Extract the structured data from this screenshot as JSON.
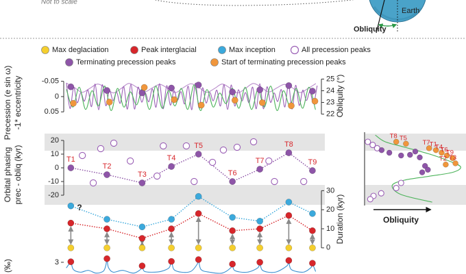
{
  "header": {
    "note": "Not to scale",
    "earth": "Earth",
    "obliquity": "Obliquity"
  },
  "legend": [
    {
      "name": "Max deglaciation",
      "color": "#f5cf2e",
      "marker": "filled"
    },
    {
      "name": "Peak interglacial",
      "color": "#d7262b",
      "marker": "filled"
    },
    {
      "name": "Max inception",
      "color": "#3ba9dc",
      "marker": "filled"
    },
    {
      "name": "All precession peaks",
      "color": "#9a5fb5",
      "marker": "open"
    },
    {
      "name": "Terminating precession peaks",
      "color": "#8e55a8",
      "marker": "filled"
    },
    {
      "name": "Start of terminating precession peaks",
      "color": "#f0963c",
      "marker": "filled"
    }
  ],
  "chart_data": [
    {
      "type": "line",
      "ylabel": "Precession (e sin ω)",
      "ylabel2": "-1* eccentricity",
      "y2label": "Obliquity (°)",
      "xlim": [
        0,
        810
      ],
      "ylim": [
        0.065,
        -0.065
      ],
      "yticks": [
        -0.05,
        0,
        0.05
      ],
      "y2lim": [
        21.8,
        25.2
      ],
      "y2ticks": [
        22,
        23,
        24,
        25
      ],
      "series": [
        {
          "color": "#b98ccc",
          "line": "solid",
          "x": [
            0,
            25,
            50,
            75,
            100,
            125,
            150,
            175,
            200,
            225,
            250,
            275,
            300,
            325,
            350,
            375,
            400,
            425,
            450,
            475,
            500,
            525,
            550,
            575,
            600,
            625,
            650,
            675,
            700,
            725,
            750,
            775,
            800
          ],
          "values": [
            -0.044,
            -0.03,
            -0.014,
            -0.027,
            -0.041,
            -0.029,
            -0.012,
            -0.026,
            -0.043,
            -0.031,
            -0.015,
            -0.028,
            -0.04,
            -0.027,
            -0.013,
            -0.029,
            -0.042,
            -0.03,
            -0.014,
            -0.026,
            -0.041,
            -0.028,
            -0.012,
            -0.027,
            -0.043,
            -0.031,
            -0.015,
            -0.028,
            -0.04,
            -0.029,
            -0.013,
            -0.026,
            -0.042
          ]
        },
        {
          "color": "#9a5fb5",
          "line": "solid",
          "x": [
            0,
            11.5,
            23,
            34.5,
            46,
            57.5,
            69,
            80.5,
            92,
            103.5,
            115,
            126.5,
            138,
            149.5,
            161,
            172.5,
            184,
            195.5,
            207,
            218.5,
            230,
            241.5,
            253,
            264.5,
            276,
            287.5,
            299,
            310.5,
            322,
            333.5,
            345,
            356.5,
            368,
            379.5,
            391,
            402.5,
            414,
            425.5,
            437,
            448.5,
            460,
            471.5,
            483,
            494.5,
            506,
            517.5,
            529,
            540.5,
            552,
            563.5,
            575,
            586.5,
            598,
            609.5,
            621,
            632.5,
            644,
            655.5,
            667,
            678.5,
            690,
            701.5,
            713,
            724.5,
            736,
            747.5,
            759,
            770.5,
            782,
            793.5,
            805
          ],
          "values": [
            -0.043,
            0.039,
            -0.03,
            0.02,
            -0.013,
            0.015,
            -0.022,
            0.033,
            -0.041,
            0.043,
            -0.039,
            0.03,
            -0.02,
            0.013,
            -0.015,
            0.022,
            -0.033,
            0.041,
            -0.04,
            0.041,
            -0.031,
            0.018,
            -0.012,
            0.017,
            -0.025,
            0.035,
            -0.042,
            0.04,
            -0.036,
            0.028,
            -0.019,
            0.012,
            -0.016,
            0.024,
            -0.034,
            0.043,
            -0.044,
            0.037,
            -0.029,
            0.021,
            -0.014,
            0.014,
            -0.021,
            0.031,
            -0.039,
            0.042,
            -0.038,
            0.031,
            -0.022,
            0.014,
            -0.013,
            0.02,
            -0.031,
            0.04,
            -0.042,
            0.04,
            -0.032,
            0.019,
            -0.012,
            0.016,
            -0.023,
            0.034,
            -0.04,
            0.041,
            -0.037,
            0.029,
            -0.021,
            0.013,
            -0.016,
            0.023,
            -0.035
          ]
        },
        {
          "color": "#4cb35a",
          "line": "solid",
          "axis": "y2",
          "x": [
            0,
            20.5,
            41,
            61.5,
            82,
            102.5,
            123,
            143.5,
            164,
            184.5,
            205,
            225.5,
            246,
            266.5,
            287,
            307.5,
            328,
            348.5,
            369,
            389.5,
            410,
            430.5,
            451,
            471.5,
            492,
            512.5,
            533,
            553.5,
            574,
            594.5,
            615,
            635.5,
            656,
            676.5,
            697,
            717.5,
            738,
            758.5,
            779,
            799.5
          ],
          "values": [
            24.1,
            22.6,
            24.3,
            22.4,
            24,
            22.7,
            24.4,
            22.3,
            24.2,
            22.6,
            23.9,
            22.8,
            24.3,
            22.4,
            24.4,
            22.5,
            24,
            22.7,
            24.2,
            22.4,
            24.5,
            22.3,
            24.1,
            22.6,
            23.8,
            22.9,
            24.2,
            22.5,
            24.3,
            22.4,
            24.1,
            22.6,
            24.4,
            22.3,
            24,
            22.7,
            24.2,
            22.5,
            24.3,
            22.4
          ]
        },
        {
          "color": "#8e55a8",
          "marker": "filled",
          "x": [
            14,
            130,
            243,
            337,
            424,
            533,
            621,
            714,
            790
          ],
          "values": [
            -0.032,
            -0.02,
            -0.012,
            -0.028,
            -0.038,
            -0.015,
            -0.022,
            -0.036,
            -0.018
          ]
        },
        {
          "color": "#f0963c",
          "marker": "filled",
          "x": [
            22,
            138,
            250,
            346,
            433,
            541,
            629,
            722,
            798
          ],
          "values": [
            0.022,
            0.018,
            -0.03,
            0.01,
            0.028,
            0.012,
            0.02,
            0.03,
            0.015
          ]
        }
      ]
    },
    {
      "type": "scatter",
      "ylabel": "Orbital phasing",
      "ylabel2": "prec - obliq (kyr)",
      "xlim": [
        0,
        810
      ],
      "ylim": [
        -27,
        25
      ],
      "yticks": [
        -20,
        -10,
        0,
        10,
        20
      ],
      "bands": [
        [
          12.5,
          25
        ],
        [
          -27,
          -12.5
        ]
      ],
      "x": [
        14,
        130,
        243,
        337,
        424,
        533,
        621,
        714,
        790
      ],
      "series": [
        {
          "color": "#9a5fb5",
          "marker": "open",
          "x": [
            51,
            110,
            152,
            86,
            205,
            291,
            311,
            385,
            410,
            469,
            504,
            548,
            601,
            650,
            668,
            762
          ],
          "values": [
            9,
            14,
            18,
            -11,
            5,
            -6,
            16,
            16,
            -10,
            4,
            13,
            15,
            19,
            5,
            -10,
            -10
          ]
        },
        {
          "color": "#8e55a8",
          "marker": "filled",
          "line": "dotted",
          "values": [
            0,
            -5,
            -11,
            1,
            10,
            -10,
            -1,
            11,
            -2
          ],
          "labels": [
            "T1",
            "T2",
            "T3",
            "T4",
            "T5",
            "T6",
            "T7",
            "T8",
            "T9"
          ]
        }
      ]
    },
    {
      "type": "scatter",
      "axis_side": "right",
      "ylabel": "Duration (kyr)",
      "annotation": "?",
      "xlim": [
        0,
        810
      ],
      "ylim": [
        -1.5,
        33
      ],
      "yticks": [
        0,
        10,
        20,
        30
      ],
      "arrows": true,
      "x": [
        14,
        130,
        243,
        337,
        424,
        533,
        621,
        714,
        790
      ],
      "series": [
        {
          "color": "#f5cf2e",
          "marker": "filled",
          "values": [
            0,
            0,
            0,
            0,
            0,
            0,
            0,
            0,
            0
          ]
        },
        {
          "color": "#d7262b",
          "marker": "filled",
          "line": "dotted",
          "values": [
            13,
            10,
            5,
            10,
            18,
            9,
            10,
            17,
            9
          ]
        },
        {
          "color": "#3ba9dc",
          "marker": "filled",
          "line": "dotted",
          "values": [
            22,
            15,
            11,
            15,
            27,
            16,
            14,
            24,
            18
          ]
        }
      ]
    },
    {
      "type": "scatter",
      "xlabel": "Obliquity",
      "xlim": [
        22,
        24.5
      ],
      "ylim": [
        -27,
        25
      ],
      "bands": [
        [
          12.5,
          25
        ],
        [
          -27,
          -12.5
        ]
      ],
      "series": [
        {
          "color": "#4cb35a",
          "line": "solid",
          "x": [
            22.27,
            22.51,
            23.02,
            23.66,
            24.14,
            24.37,
            24.17,
            23.58,
            22.98,
            22.68,
            22.9,
            23.66
          ],
          "values": [
            23.8,
            19,
            14.8,
            9.5,
            4.3,
            0.5,
            -3.3,
            -6.2,
            -9,
            -12.9,
            -19.5,
            -25
          ]
        },
        {
          "color": "#9a5fb5",
          "marker": "open",
          "x": [
            22.08,
            22.2,
            22.31,
            22.9,
            22.78,
            22.41,
            22.22,
            22.14
          ],
          "values": [
            19,
            16.7,
            14.3,
            -11,
            -14.8,
            -18.6,
            -20.5,
            -22.9
          ]
        },
        {
          "color": "#8e55a8",
          "marker": "filled",
          "x": [
            22.42,
            22.61,
            23.12,
            23.36,
            23.49,
            23.56,
            23.42,
            22.9,
            23.25
          ],
          "values": [
            12.9,
            11,
            9.5,
            7.6,
            1.4,
            -1.4,
            -3.3,
            9,
            11.9
          ]
        },
        {
          "color": "#f0963c",
          "marker": "filled",
          "x": [
            22.78,
            23.02,
            23.59,
            23.76,
            23.9,
            24.03,
            24.17,
            24,
            24.24
          ],
          "values": [
            19,
            17.6,
            14.3,
            12.9,
            11,
            9,
            7.1,
            2.4,
            3.3
          ],
          "labels": [
            "T8",
            "T5",
            "T7",
            "T1",
            "T4",
            "T6",
            "T9",
            "T2",
            "T3"
          ]
        }
      ]
    },
    {
      "type": "line",
      "ylabel": "(‰)",
      "xlim": [
        0,
        810
      ],
      "ylim": [
        3.65,
        2.7
      ],
      "yticks": [
        3
      ],
      "series": [
        {
          "color": "#3a8fd0",
          "line": "solid",
          "x": [
            0,
            8,
            14,
            22,
            45,
            70,
            95,
            118,
            126,
            130,
            135,
            150,
            180,
            215,
            238,
            243,
            250,
            275,
            305,
            330,
            337,
            345,
            370,
            400,
            420,
            424,
            432,
            460,
            500,
            528,
            533,
            540,
            580,
            615,
            621,
            630,
            670,
            708,
            714,
            722,
            760,
            785,
            790,
            800
          ],
          "values": [
            3.3,
            3.1,
            2.95,
            3.4,
            3.55,
            3.45,
            3.6,
            3.5,
            3.2,
            2.85,
            3.3,
            3.55,
            3.45,
            3.6,
            3.4,
            3.2,
            3.5,
            3.55,
            3.5,
            3.3,
            2.9,
            3.4,
            3.55,
            3.5,
            3.1,
            2.85,
            3.4,
            3.55,
            3.6,
            3.3,
            3.05,
            3.45,
            3.55,
            3.3,
            3,
            3.45,
            3.55,
            3.2,
            2.95,
            3.4,
            3.55,
            3.3,
            3.1,
            3.5
          ]
        },
        {
          "color": "#d7262b",
          "marker": "filled",
          "x": [
            14,
            130,
            243,
            337,
            424,
            533,
            621,
            714,
            790
          ],
          "values": [
            2.97,
            2.8,
            3.2,
            2.95,
            2.85,
            3.1,
            3,
            2.9,
            3.05
          ]
        }
      ]
    }
  ]
}
